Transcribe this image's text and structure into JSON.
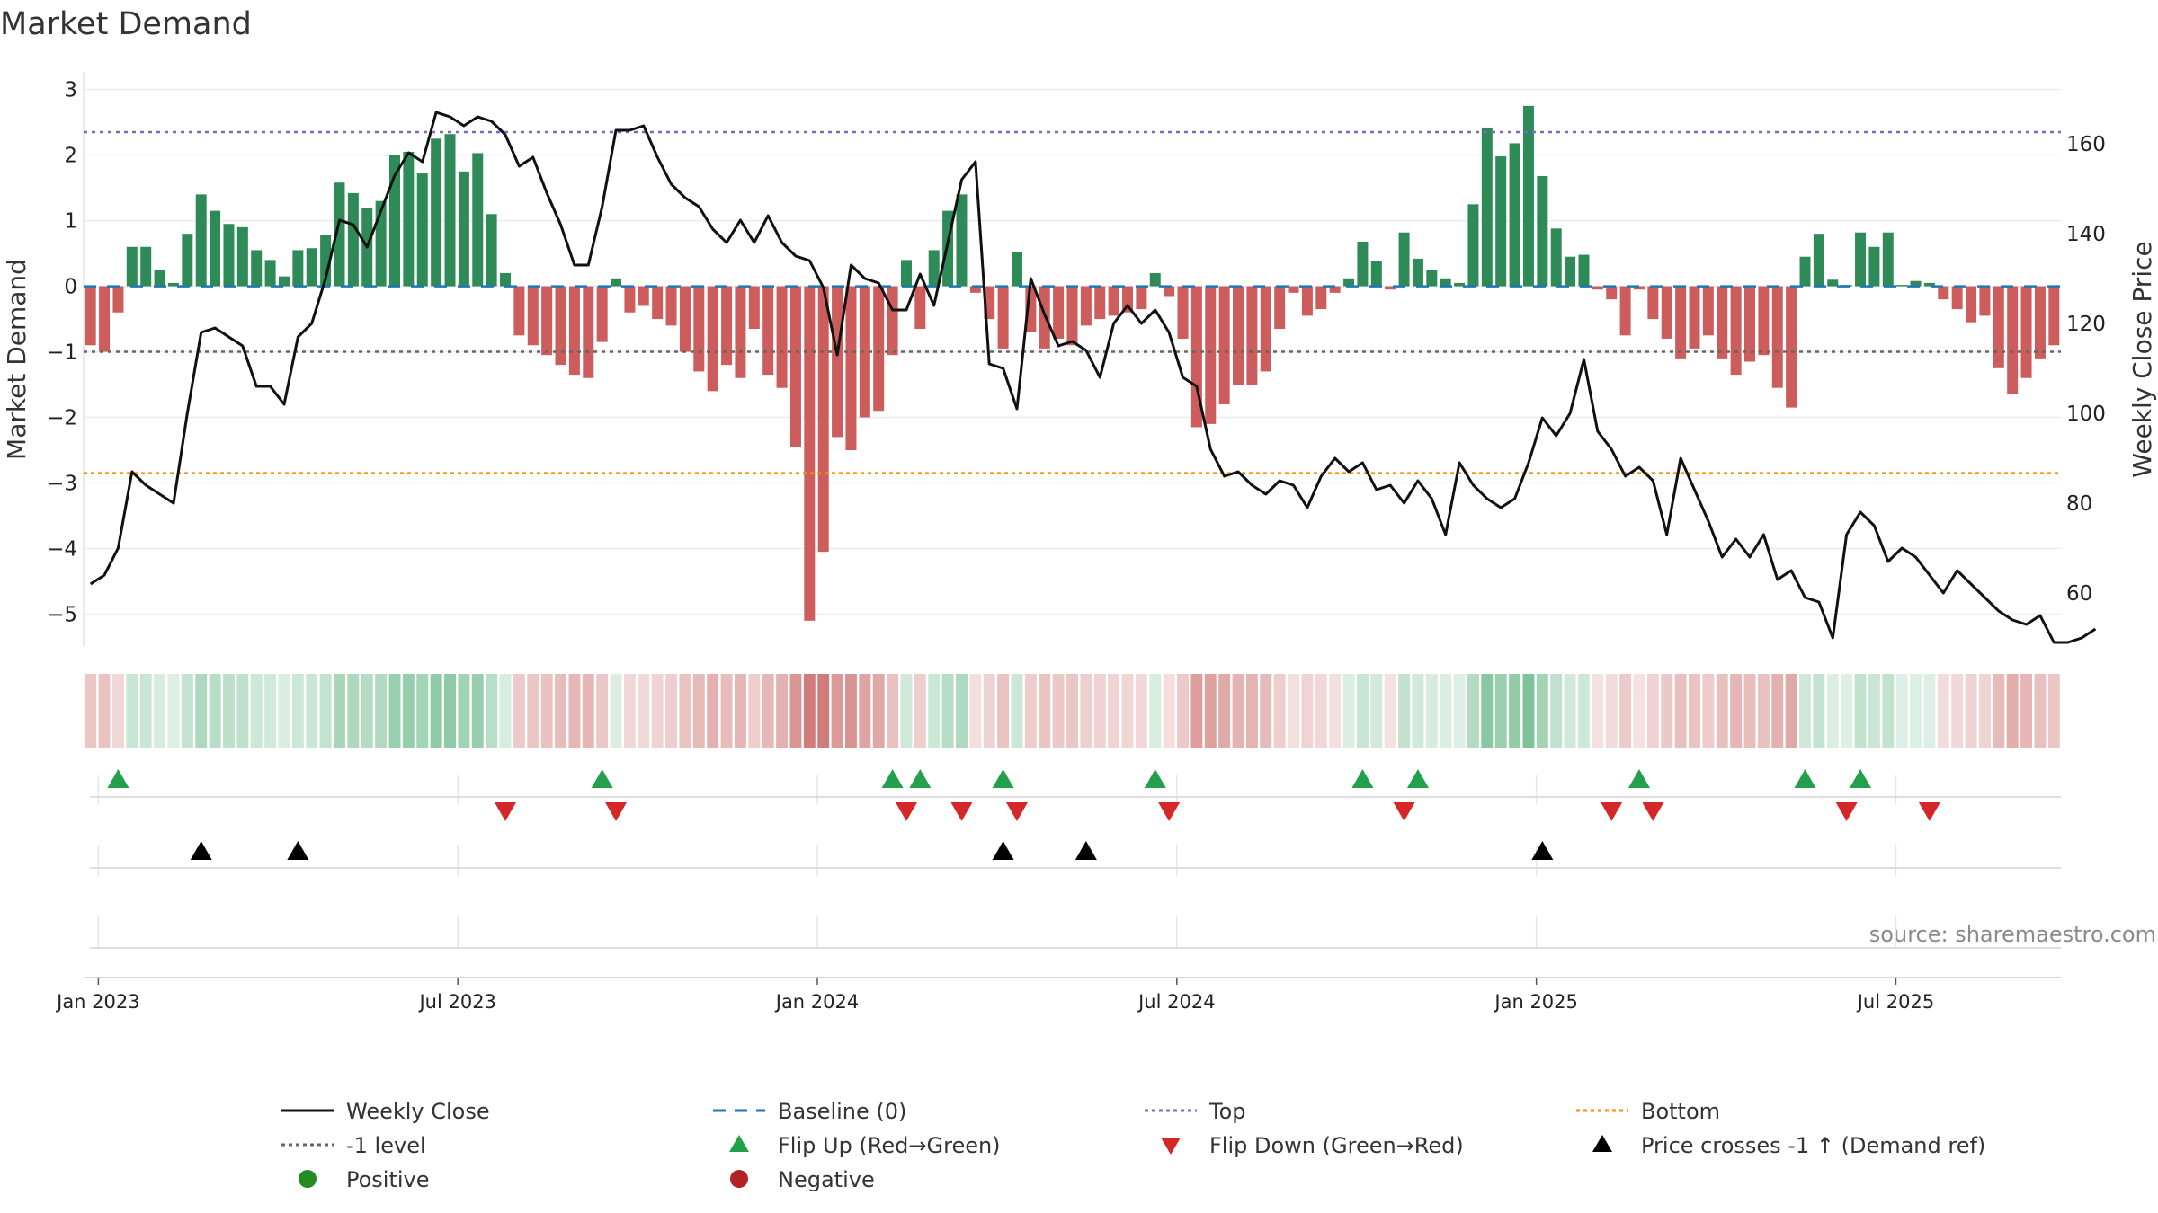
{
  "chart_data": {
    "type": "bar",
    "title": "Market Demand",
    "ylabel_left": "Market Demand",
    "ylabel_right": "Weekly Close Price",
    "ylim_left": [
      -5.5,
      3.2
    ],
    "ylim_right": [
      48,
      175
    ],
    "yticks_left": [
      3,
      2,
      1,
      0,
      -1,
      -2,
      -3,
      -4,
      -5
    ],
    "ytick_labels_left": [
      "3",
      "2",
      "1",
      "0",
      "−1",
      "−2",
      "−3",
      "−4",
      "−5"
    ],
    "yticks_right": [
      160,
      140,
      120,
      100,
      80,
      60
    ],
    "ytick_labels_right": [
      "160",
      "140",
      "120",
      "100",
      "80",
      "60"
    ],
    "xticks": [
      {
        "week": 1,
        "label": "Jan 2023"
      },
      {
        "week": 27,
        "label": "Jul 2023"
      },
      {
        "week": 53,
        "label": "Jan 2024"
      },
      {
        "week": 79,
        "label": "Jul 2024"
      },
      {
        "week": 105,
        "label": "Jan 2025"
      },
      {
        "week": 131,
        "label": "Jul 2025"
      }
    ],
    "reference_lines": {
      "top": 2.35,
      "minus_one": -1,
      "bottom": -2.85
    },
    "colors": {
      "positive_bar": "#2e8b57",
      "negative_bar": "#cd5c5c",
      "price_line": "#111111",
      "baseline": "#1f77b4",
      "top_line": "#7b68c8",
      "minus_one_line": "#666666",
      "bottom_line": "#ff8c00",
      "flip_up": "#22a04b",
      "flip_down": "#d62728",
      "cross_marker": "#000000",
      "positive_dot": "#228b22",
      "negative_dot": "#b22222"
    },
    "demand": [
      -0.9,
      -1.0,
      -0.4,
      0.6,
      0.6,
      0.25,
      0.05,
      0.8,
      1.4,
      1.15,
      0.95,
      0.9,
      0.55,
      0.4,
      0.15,
      0.55,
      0.58,
      0.78,
      1.58,
      1.42,
      1.2,
      1.3,
      2.0,
      2.05,
      1.72,
      2.25,
      2.32,
      1.75,
      2.03,
      1.1,
      0.2,
      -0.75,
      -0.9,
      -1.05,
      -1.2,
      -1.35,
      -1.4,
      -0.85,
      0.12,
      -0.4,
      -0.3,
      -0.5,
      -0.6,
      -1.0,
      -1.3,
      -1.6,
      -1.2,
      -1.4,
      -0.65,
      -1.35,
      -1.55,
      -2.45,
      -5.1,
      -4.05,
      -2.3,
      -2.5,
      -2.0,
      -1.9,
      -1.05,
      0.4,
      -0.65,
      0.55,
      1.15,
      1.4,
      -0.1,
      -0.5,
      -0.95,
      0.52,
      -0.7,
      -0.95,
      -0.8,
      -0.9,
      -0.6,
      -0.5,
      -0.45,
      -0.4,
      -0.35,
      0.2,
      -0.15,
      -0.8,
      -2.15,
      -2.1,
      -1.8,
      -1.5,
      -1.5,
      -1.3,
      -0.65,
      -0.1,
      -0.45,
      -0.35,
      -0.1,
      0.12,
      0.68,
      0.38,
      -0.05,
      0.82,
      0.42,
      0.25,
      0.12,
      0.05,
      1.25,
      2.42,
      1.98,
      2.18,
      2.75,
      1.68,
      0.88,
      0.45,
      0.48,
      -0.05,
      -0.2,
      -0.75,
      -0.05,
      -0.5,
      -0.8,
      -1.1,
      -0.95,
      -0.75,
      -1.1,
      -1.35,
      -1.15,
      -1.05,
      -1.55,
      -1.85,
      0.45,
      0.8,
      0.1,
      0.02,
      0.82,
      0.6,
      0.82,
      0.02,
      0.08,
      0.05,
      -0.2,
      -0.35,
      -0.55,
      -0.45,
      -1.25,
      -1.65,
      -1.4,
      -1.1,
      -0.9
    ],
    "weekly_close": [
      62,
      64,
      70,
      87,
      84,
      82,
      80,
      100,
      118,
      119,
      117,
      115,
      106,
      106,
      102,
      117,
      120,
      130,
      143,
      142,
      137,
      145,
      153,
      158,
      156,
      167,
      166,
      164,
      166,
      165,
      162,
      155,
      157,
      149,
      142,
      133,
      133,
      146,
      163,
      163,
      164,
      157,
      151,
      148,
      146,
      141,
      138,
      143,
      138,
      144,
      138,
      135,
      134,
      128,
      113,
      133,
      130,
      129,
      123,
      123,
      131,
      124,
      138,
      152,
      156,
      111,
      110,
      101,
      130,
      122,
      115,
      116,
      114,
      108,
      120,
      124,
      120,
      123,
      118,
      108,
      106,
      92,
      86,
      87,
      84,
      82,
      85,
      84,
      79,
      86,
      90,
      87,
      89,
      83,
      84,
      80,
      85,
      81,
      73,
      89,
      84,
      81,
      79,
      81,
      89,
      99,
      95,
      100,
      112,
      96,
      92,
      86,
      88,
      85,
      73,
      90,
      83,
      76,
      68,
      72,
      68,
      73,
      63,
      65,
      59,
      58,
      50,
      73,
      78,
      75,
      67,
      70,
      68,
      64,
      60,
      65,
      62,
      59,
      56,
      54,
      53,
      55,
      49,
      49,
      50,
      52
    ],
    "flip_up_weeks": [
      2,
      37,
      58,
      60,
      66,
      77,
      92,
      96,
      112,
      124,
      128
    ],
    "flip_down_weeks": [
      30,
      38,
      59,
      63,
      67,
      78,
      95,
      110,
      113,
      127,
      133
    ],
    "price_cross_weeks": [
      8,
      15,
      66,
      72,
      105
    ],
    "source": "source: sharemaestro.com",
    "legend": [
      {
        "key": "weekly_close",
        "label": "Weekly Close"
      },
      {
        "key": "baseline",
        "label": "Baseline (0)"
      },
      {
        "key": "top",
        "label": "Top"
      },
      {
        "key": "bottom",
        "label": "Bottom"
      },
      {
        "key": "minus_one",
        "label": "-1 level"
      },
      {
        "key": "flip_up",
        "label": "Flip Up (Red→Green)"
      },
      {
        "key": "flip_down",
        "label": "Flip Down (Green→Red)"
      },
      {
        "key": "price_cross",
        "label": "Price crosses -1 ↑ (Demand ref)"
      },
      {
        "key": "positive",
        "label": "Positive"
      },
      {
        "key": "negative",
        "label": "Negative"
      }
    ]
  }
}
